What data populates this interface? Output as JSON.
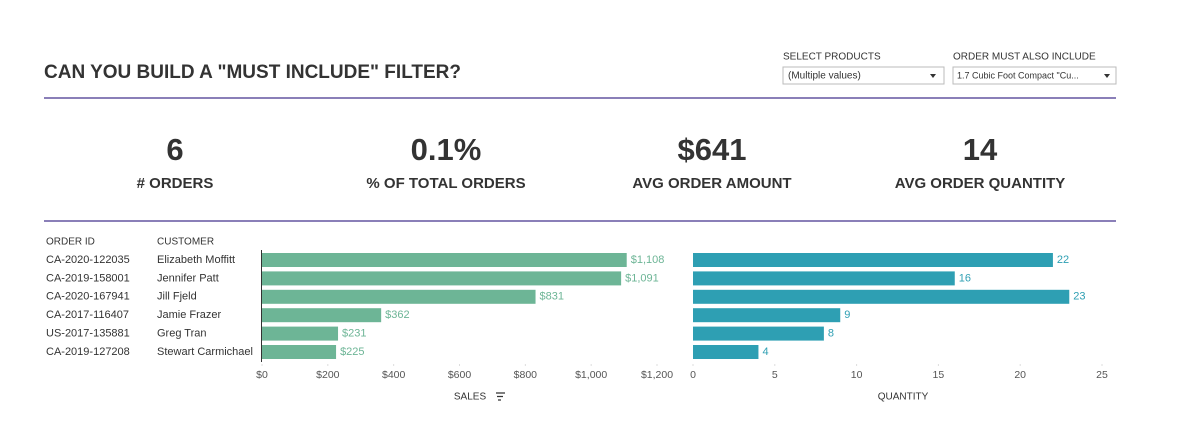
{
  "header": {
    "title": "CAN YOU BUILD A \"MUST INCLUDE\" FILTER?",
    "filters": [
      {
        "label": "SELECT PRODUCTS",
        "value": "(Multiple values)"
      },
      {
        "label": "ORDER MUST ALSO INCLUDE",
        "value": "1.7 Cubic Foot Compact \"Cu..."
      }
    ]
  },
  "kpis": [
    {
      "value": "6",
      "label": "# ORDERS"
    },
    {
      "value": "0.1%",
      "label": "% OF TOTAL ORDERS"
    },
    {
      "value": "$641",
      "label": "AVG ORDER AMOUNT"
    },
    {
      "value": "14",
      "label": "AVG ORDER QUANTITY"
    }
  ],
  "table": {
    "columns": [
      "ORDER ID",
      "CUSTOMER"
    ],
    "order_ids": [
      "CA-2020-122035",
      "CA-2019-158001",
      "CA-2020-167941",
      "CA-2017-116407",
      "US-2017-135881",
      "CA-2019-127208"
    ]
  },
  "chart_data": [
    {
      "type": "bar",
      "x_label": "SALES",
      "color": "#6db596",
      "categories": [
        "Elizabeth Moffitt",
        "Jennifer Patt",
        "Jill Fjeld",
        "Jamie Frazer",
        "Greg Tran",
        "Stewart Carmichael"
      ],
      "values": [
        1108,
        1091,
        831,
        362,
        231,
        225
      ],
      "value_labels": [
        "$1,108",
        "$1,091",
        "$831",
        "$362",
        "$231",
        "$225"
      ],
      "xlim": [
        0,
        1200
      ],
      "xticks": [
        {
          "value": 0,
          "label": "$0"
        },
        {
          "value": 200,
          "label": "$200"
        },
        {
          "value": 400,
          "label": "$400"
        },
        {
          "value": 600,
          "label": "$600"
        },
        {
          "value": 800,
          "label": "$800"
        },
        {
          "value": 1000,
          "label": "$1,000"
        },
        {
          "value": 1200,
          "label": "$1,200"
        }
      ]
    },
    {
      "type": "bar",
      "x_label": "QUANTITY",
      "color": "#2e9fb3",
      "values": [
        22,
        16,
        23,
        9,
        8,
        4
      ],
      "xlim": [
        0,
        25
      ],
      "xticks": [
        0,
        5,
        10,
        15,
        20,
        25
      ]
    }
  ]
}
